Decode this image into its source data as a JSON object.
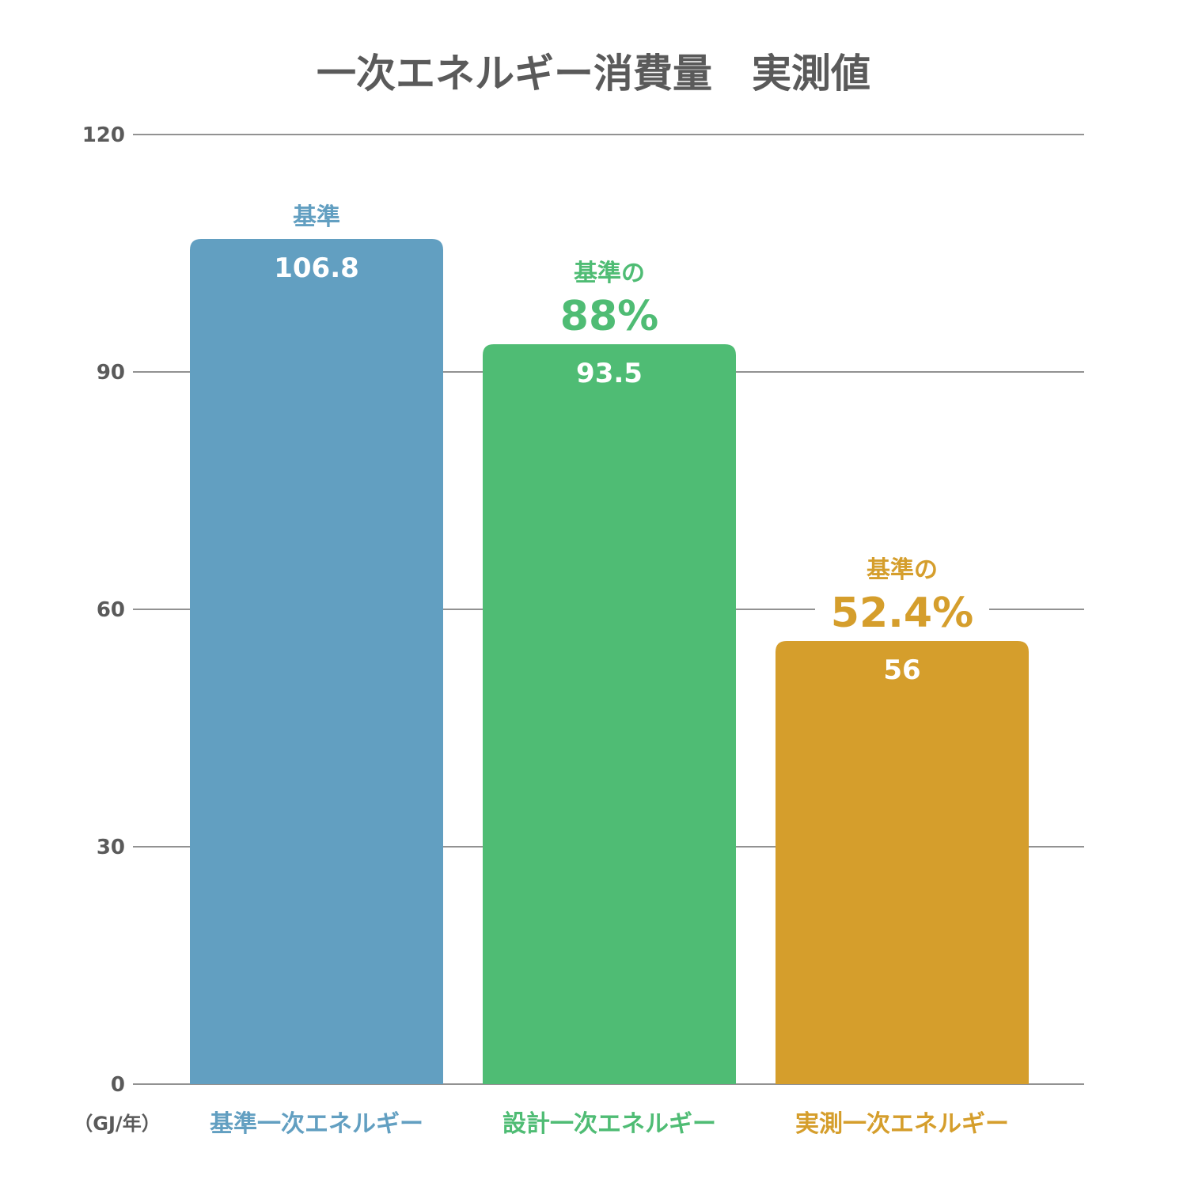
{
  "chart_data": {
    "type": "bar",
    "title": "一次エネルギー消費量　実測値",
    "unit_label": "（GJ/年）",
    "ylim": [
      0,
      120
    ],
    "yticks": [
      0,
      30,
      60,
      90,
      120
    ],
    "grid": true,
    "categories": [
      "基準一次エネルギー",
      "設計一次エネルギー",
      "実測一次エネルギー"
    ],
    "values": [
      106.8,
      93.5,
      56
    ],
    "value_labels": [
      "106.8",
      "93.5",
      "56"
    ],
    "colors": [
      "#629fc1",
      "#4fbc74",
      "#d59e2c"
    ],
    "annotations": [
      {
        "line1": "基準",
        "line2": ""
      },
      {
        "line1": "基準の",
        "line2": "88%"
      },
      {
        "line1": "基準の",
        "line2": "52.4%"
      }
    ]
  }
}
